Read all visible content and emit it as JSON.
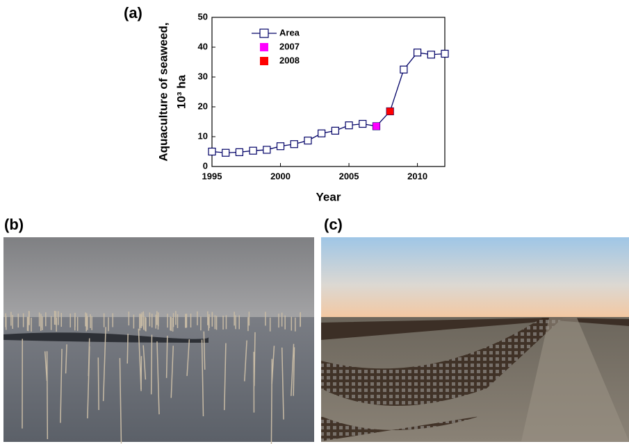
{
  "panel_labels": [
    "(a)",
    "(b)",
    "(c)"
  ],
  "chart_data": {
    "type": "line",
    "xlabel": "Year",
    "ylabel": [
      "Aquaculture of seaweed,",
      "10³ ha"
    ],
    "x": [
      1995,
      1996,
      1997,
      1998,
      1999,
      2000,
      2001,
      2002,
      2003,
      2004,
      2005,
      2006,
      2007,
      2008,
      2009,
      2010,
      2011,
      2012
    ],
    "series": [
      {
        "name": "Area",
        "color": "#000066",
        "marker": "open-square",
        "values": [
          5.0,
          4.6,
          4.8,
          5.3,
          5.6,
          6.8,
          7.5,
          8.7,
          11.1,
          12.0,
          13.8,
          14.3,
          13.5,
          18.5,
          32.5,
          38.2,
          37.5,
          37.8
        ]
      },
      {
        "name": "2007",
        "color": "#ff00ff",
        "marker": "filled-square",
        "values": [
          null,
          null,
          null,
          null,
          null,
          null,
          null,
          null,
          null,
          null,
          null,
          null,
          13.5,
          null,
          null,
          null,
          null,
          null
        ]
      },
      {
        "name": "2008",
        "color": "#ff0000",
        "marker": "filled-square",
        "values": [
          null,
          null,
          null,
          null,
          null,
          null,
          null,
          null,
          null,
          null,
          null,
          null,
          null,
          18.5,
          null,
          null,
          null,
          null
        ]
      }
    ],
    "xlim": [
      1995,
      2012
    ],
    "xticks": [
      1995,
      2000,
      2005,
      2010
    ],
    "ylim": [
      0,
      50
    ],
    "yticks": [
      0,
      10,
      20,
      30,
      40,
      50
    ],
    "grid": false,
    "legend": "upper left"
  }
}
